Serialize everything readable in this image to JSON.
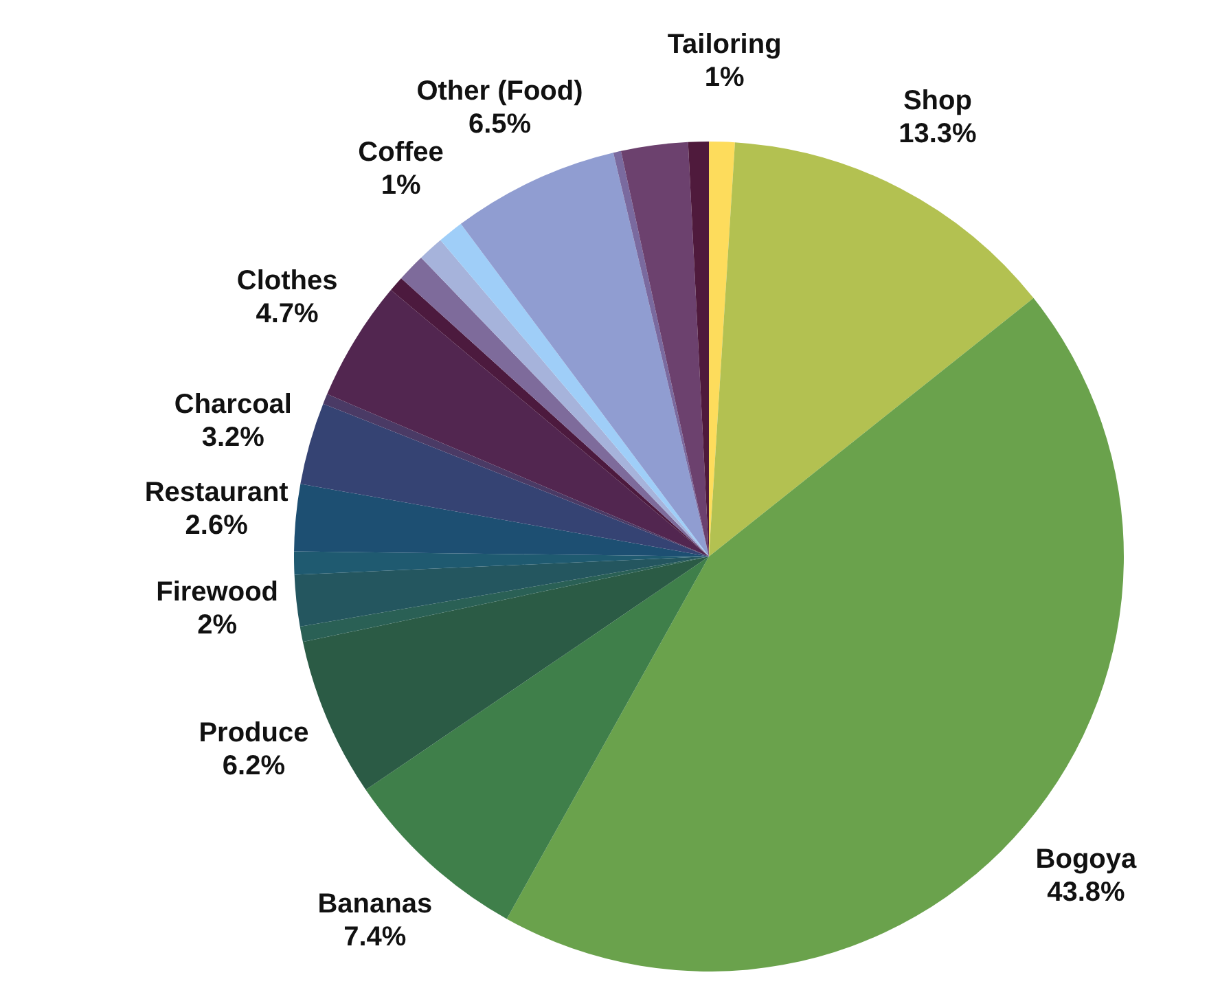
{
  "chart_data": {
    "type": "pie",
    "categories": [
      "Tailoring",
      "Shop",
      "Bogoya",
      "Bananas",
      "Produce",
      null,
      "Firewood",
      null,
      "Restaurant",
      "Charcoal",
      null,
      "Clothes",
      null,
      null,
      null,
      "Coffee",
      "Other (Food)",
      null,
      null,
      null
    ],
    "values": [
      1,
      13.3,
      43.8,
      7.4,
      6.2,
      0.6,
      2,
      0.9,
      2.6,
      3.2,
      0.4,
      4.7,
      0.6,
      1.1,
      1.0,
      1,
      6.5,
      0.3,
      2.6,
      0.8
    ],
    "value_labels": [
      "1%",
      "13.3%",
      "43.8%",
      "7.4%",
      "6.2%",
      null,
      "2%",
      null,
      "2.6%",
      "3.2%",
      null,
      "4.7%",
      null,
      null,
      null,
      "1%",
      "6.5%",
      null,
      null,
      null
    ],
    "colors": [
      "#fddc5c",
      "#b3c151",
      "#6aa24c",
      "#3f7f4a",
      "#2b5b45",
      "#2a6055",
      "#24565f",
      "#1f5a70",
      "#1d4f72",
      "#354373",
      "#4a3a65",
      "#522650",
      "#4c1a3e",
      "#7e6b9b",
      "#a6b3db",
      "#9fcef8",
      "#909dd1",
      "#7a6a9f",
      "#6c416e",
      "#4f1a3c"
    ],
    "legend": false
  }
}
